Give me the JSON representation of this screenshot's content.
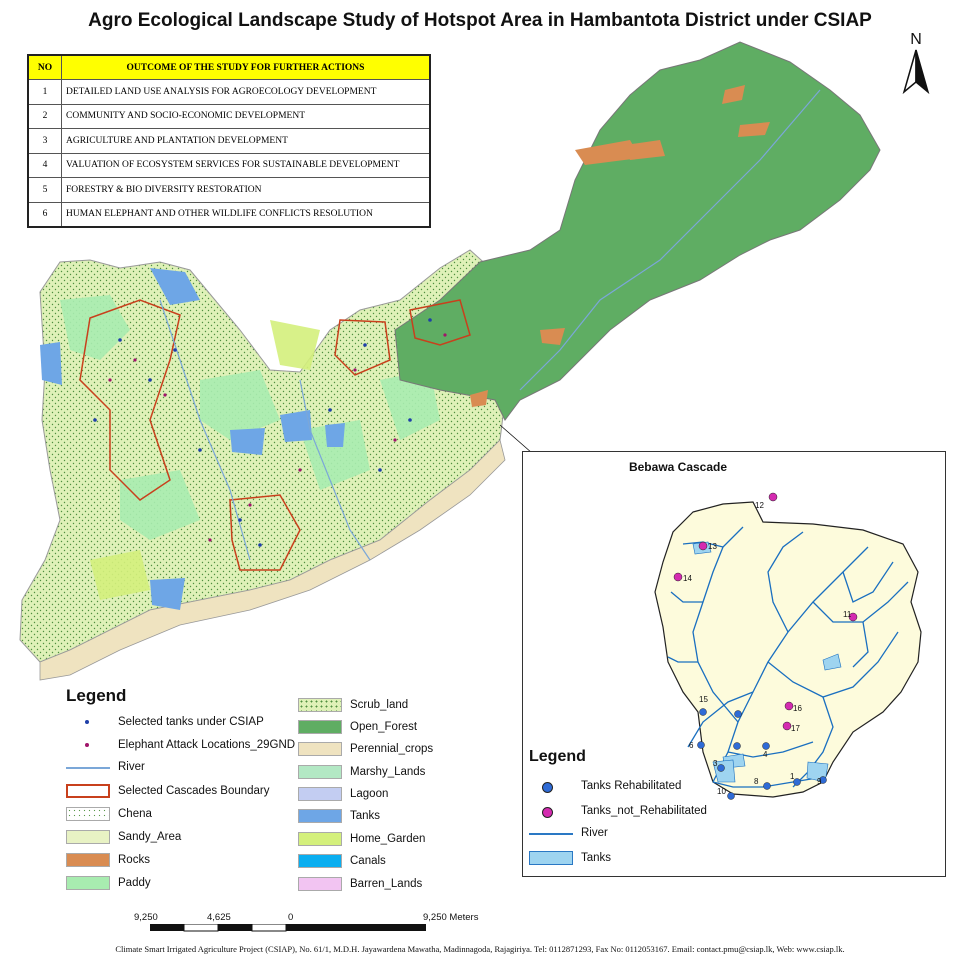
{
  "title": "Agro Ecological Landscape Study of Hotspot Area in Hambantota District under CSIAP",
  "north_label": "N",
  "outcome_table": {
    "headers": [
      "NO",
      "OUTCOME OF THE STUDY FOR FURTHER ACTIONS"
    ],
    "rows": [
      {
        "no": "1",
        "text": "DETAILED LAND USE ANALYSIS FOR AGROECOLOGY DEVELOPMENT"
      },
      {
        "no": "2",
        "text": "COMMUNITY AND SOCIO-ECONOMIC DEVELOPMENT"
      },
      {
        "no": "3",
        "text": "AGRICULTURE AND PLANTATION DEVELOPMENT"
      },
      {
        "no": "4",
        "text": "VALUATION OF ECOSYSTEM SERVICES FOR SUSTAINABLE DEVELOPMENT"
      },
      {
        "no": "5",
        "text": "FORESTRY & BIO DIVERSITY RESTORATION"
      },
      {
        "no": "6",
        "text": "HUMAN ELEPHANT AND OTHER WILDLIFE CONFLICTS RESOLUTION"
      }
    ]
  },
  "legend": {
    "title": "Legend",
    "items_left": [
      {
        "label": "Selected tanks under CSIAP",
        "kind": "point",
        "color": "#1f3fa8"
      },
      {
        "label": "Elephant Attack Locations_29GND",
        "kind": "point",
        "color": "#a0156a"
      },
      {
        "label": "River",
        "kind": "line",
        "color": "#7ba7d8"
      },
      {
        "label": "Selected Cascades Boundary",
        "kind": "outline",
        "color": "#c8401c"
      },
      {
        "label": "Chena",
        "kind": "dots",
        "color": "#ffffff"
      },
      {
        "label": "Sandy_Area",
        "kind": "fill",
        "color": "#e8f2c4"
      },
      {
        "label": "Rocks",
        "kind": "fill",
        "color": "#d98c52"
      },
      {
        "label": "Paddy",
        "kind": "fill",
        "color": "#a8ecb0"
      }
    ],
    "items_right": [
      {
        "label": "Scrub_land",
        "kind": "dots",
        "color": "#cfeaa0"
      },
      {
        "label": "Open_Forest",
        "kind": "fill",
        "color": "#5fad63"
      },
      {
        "label": "Perennial_crops",
        "kind": "fill",
        "color": "#efe3c0"
      },
      {
        "label": "Marshy_Lands",
        "kind": "fill",
        "color": "#b3e8c4"
      },
      {
        "label": "Lagoon",
        "kind": "fill",
        "color": "#c3cdf2"
      },
      {
        "label": "Tanks",
        "kind": "fill",
        "color": "#6ea6e6"
      },
      {
        "label": "Home_Garden",
        "kind": "fill",
        "color": "#d4f07c"
      },
      {
        "label": "Canals",
        "kind": "fill",
        "color": "#0aaef0"
      },
      {
        "label": "Barren_Lands",
        "kind": "fill",
        "color": "#f2c4f2"
      }
    ]
  },
  "inset": {
    "title": "Bebawa Cascade",
    "legend_title": "Legend",
    "legend_items": [
      {
        "label": "Tanks Rehabilitated",
        "kind": "point",
        "color": "#2f6bd6"
      },
      {
        "label": "Tanks_not_Rehabilitated",
        "kind": "point",
        "color": "#d42bb0"
      },
      {
        "label": "River",
        "kind": "line",
        "color": "#2a78c4"
      },
      {
        "label": "Tanks",
        "kind": "fill",
        "color": "#9ed4f0"
      }
    ],
    "tanks_not_rehabilitated": [
      "12",
      "13",
      "14",
      "11",
      "16",
      "17"
    ],
    "tanks_rehabilitated": [
      "15",
      "6",
      "3",
      "10",
      "8",
      "4",
      "1",
      "9"
    ],
    "colors": {
      "area": "#fdfbdc",
      "river": "#1a6fc0"
    }
  },
  "scale_bar": {
    "labels": [
      "9,250",
      "4,625",
      "0",
      "9,250 Meters"
    ]
  },
  "footer": "Climate Smart Irrigated Agriculture Project (CSIAP), No. 61/1, M.D.H. Jayawardena Mawatha, Madinnagoda, Rajagiriya. Tel: 0112871293, Fax No: 0112053167.  Email: contact.pmu@csiap.lk, Web: www.csiap.lk."
}
